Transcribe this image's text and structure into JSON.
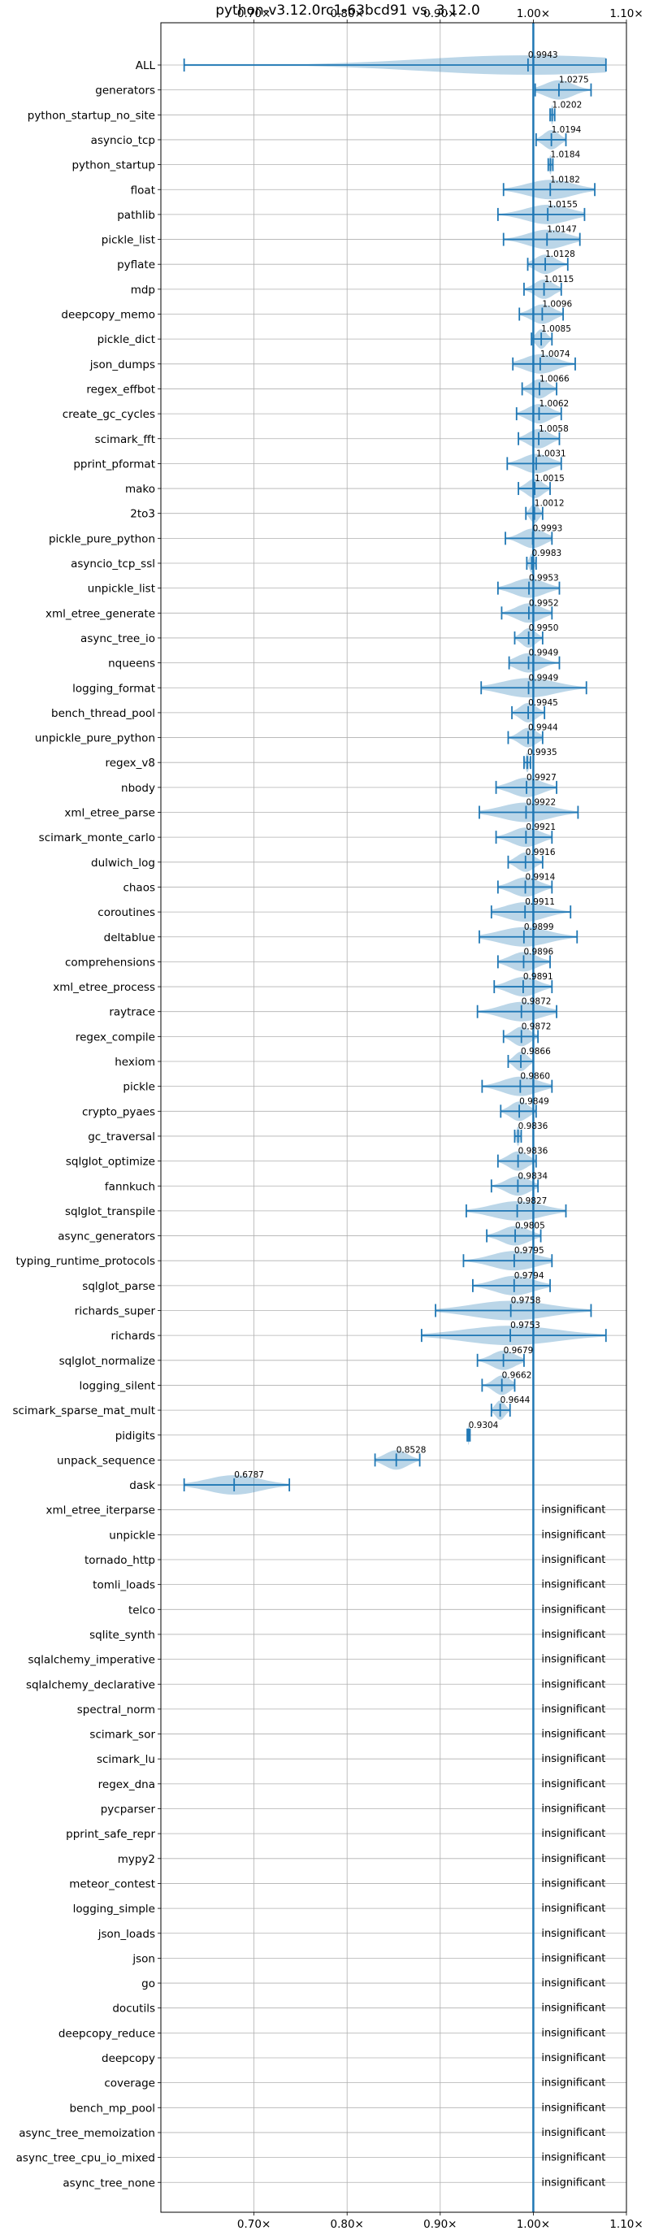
{
  "chart_data": {
    "type": "violin",
    "title": "python-v3.12.0rc1-63bcd91 vs. 3.12.0",
    "xlim": [
      0.6,
      1.1
    ],
    "xticks": [
      {
        "value": 0.7,
        "label": "0.70×"
      },
      {
        "value": 0.8,
        "label": "0.80×"
      },
      {
        "value": 0.9,
        "label": "0.90×"
      },
      {
        "value": 1.0,
        "label": "1.00×"
      },
      {
        "value": 1.1,
        "label": "1.10×"
      }
    ],
    "grid": true,
    "reference_line": 1.0,
    "insignificant_label": "insignificant",
    "benchmarks": [
      {
        "name": "ALL",
        "value": 0.9943,
        "label": "0.9943",
        "min": 0.625,
        "max": 1.078,
        "spread": 0.012
      },
      {
        "name": "generators",
        "value": 1.0275,
        "label": "1.0275",
        "min": 1.002,
        "max": 1.062,
        "spread": 0.02
      },
      {
        "name": "python_startup_no_site",
        "value": 1.0202,
        "label": "1.0202",
        "min": 1.018,
        "max": 1.023,
        "spread": 0.003
      },
      {
        "name": "asyncio_tcp",
        "value": 1.0194,
        "label": "1.0194",
        "min": 1.003,
        "max": 1.035,
        "spread": 0.012
      },
      {
        "name": "python_startup",
        "value": 1.0184,
        "label": "1.0184",
        "min": 1.016,
        "max": 1.021,
        "spread": 0.003
      },
      {
        "name": "float",
        "value": 1.0182,
        "label": "1.0182",
        "min": 0.968,
        "max": 1.066,
        "spread": 0.03
      },
      {
        "name": "pathlib",
        "value": 1.0155,
        "label": "1.0155",
        "min": 0.962,
        "max": 1.055,
        "spread": 0.03
      },
      {
        "name": "pickle_list",
        "value": 1.0147,
        "label": "1.0147",
        "min": 0.968,
        "max": 1.05,
        "spread": 0.026
      },
      {
        "name": "pyflate",
        "value": 1.0128,
        "label": "1.0128",
        "min": 0.994,
        "max": 1.037,
        "spread": 0.016
      },
      {
        "name": "mdp",
        "value": 1.0115,
        "label": "1.0115",
        "min": 0.99,
        "max": 1.03,
        "spread": 0.015
      },
      {
        "name": "deepcopy_memo",
        "value": 1.0096,
        "label": "1.0096",
        "min": 0.985,
        "max": 1.032,
        "spread": 0.015
      },
      {
        "name": "pickle_dict",
        "value": 1.0085,
        "label": "1.0085",
        "min": 0.998,
        "max": 1.02,
        "spread": 0.009
      },
      {
        "name": "json_dumps",
        "value": 1.0074,
        "label": "1.0074",
        "min": 0.978,
        "max": 1.045,
        "spread": 0.02
      },
      {
        "name": "regex_effbot",
        "value": 1.0066,
        "label": "1.0066",
        "min": 0.988,
        "max": 1.025,
        "spread": 0.013
      },
      {
        "name": "create_gc_cycles",
        "value": 1.0062,
        "label": "1.0062",
        "min": 0.982,
        "max": 1.03,
        "spread": 0.016
      },
      {
        "name": "scimark_fft",
        "value": 1.0058,
        "label": "1.0058",
        "min": 0.984,
        "max": 1.028,
        "spread": 0.015
      },
      {
        "name": "pprint_pformat",
        "value": 1.0031,
        "label": "1.0031",
        "min": 0.972,
        "max": 1.03,
        "spread": 0.017
      },
      {
        "name": "mako",
        "value": 1.0015,
        "label": "1.0015",
        "min": 0.984,
        "max": 1.018,
        "spread": 0.01
      },
      {
        "name": "2to3",
        "value": 1.0012,
        "label": "1.0012",
        "min": 0.992,
        "max": 1.01,
        "spread": 0.006
      },
      {
        "name": "pickle_pure_python",
        "value": 0.9993,
        "label": "0.9993",
        "min": 0.97,
        "max": 1.02,
        "spread": 0.016
      },
      {
        "name": "asyncio_tcp_ssl",
        "value": 0.9983,
        "label": "0.9983",
        "min": 0.993,
        "max": 1.003,
        "spread": 0.004
      },
      {
        "name": "unpickle_list",
        "value": 0.9953,
        "label": "0.9953",
        "min": 0.962,
        "max": 1.028,
        "spread": 0.02
      },
      {
        "name": "xml_etree_generate",
        "value": 0.9952,
        "label": "0.9952",
        "min": 0.966,
        "max": 1.02,
        "spread": 0.017
      },
      {
        "name": "async_tree_io",
        "value": 0.995,
        "label": "0.9950",
        "min": 0.98,
        "max": 1.01,
        "spread": 0.01
      },
      {
        "name": "nqueens",
        "value": 0.9949,
        "label": "0.9949",
        "min": 0.974,
        "max": 1.028,
        "spread": 0.015
      },
      {
        "name": "logging_format",
        "value": 0.9949,
        "label": "0.9949",
        "min": 0.944,
        "max": 1.057,
        "spread": 0.028
      },
      {
        "name": "bench_thread_pool",
        "value": 0.9945,
        "label": "0.9945",
        "min": 0.977,
        "max": 1.012,
        "spread": 0.011
      },
      {
        "name": "unpickle_pure_python",
        "value": 0.9944,
        "label": "0.9944",
        "min": 0.973,
        "max": 1.01,
        "spread": 0.013
      },
      {
        "name": "regex_v8",
        "value": 0.9935,
        "label": "0.9935",
        "min": 0.99,
        "max": 0.997,
        "spread": 0.003
      },
      {
        "name": "nbody",
        "value": 0.9927,
        "label": "0.9927",
        "min": 0.96,
        "max": 1.025,
        "spread": 0.018
      },
      {
        "name": "xml_etree_parse",
        "value": 0.9922,
        "label": "0.9922",
        "min": 0.942,
        "max": 1.048,
        "spread": 0.03
      },
      {
        "name": "scimark_monte_carlo",
        "value": 0.9921,
        "label": "0.9921",
        "min": 0.96,
        "max": 1.02,
        "spread": 0.018
      },
      {
        "name": "dulwich_log",
        "value": 0.9916,
        "label": "0.9916",
        "min": 0.973,
        "max": 1.01,
        "spread": 0.012
      },
      {
        "name": "chaos",
        "value": 0.9914,
        "label": "0.9914",
        "min": 0.962,
        "max": 1.02,
        "spread": 0.017
      },
      {
        "name": "coroutines",
        "value": 0.9911,
        "label": "0.9911",
        "min": 0.955,
        "max": 1.04,
        "spread": 0.018
      },
      {
        "name": "deltablue",
        "value": 0.9899,
        "label": "0.9899",
        "min": 0.942,
        "max": 1.047,
        "spread": 0.025
      },
      {
        "name": "comprehensions",
        "value": 0.9896,
        "label": "0.9896",
        "min": 0.962,
        "max": 1.018,
        "spread": 0.016
      },
      {
        "name": "xml_etree_process",
        "value": 0.9891,
        "label": "0.9891",
        "min": 0.958,
        "max": 1.02,
        "spread": 0.018
      },
      {
        "name": "raytrace",
        "value": 0.9872,
        "label": "0.9872",
        "min": 0.94,
        "max": 1.025,
        "spread": 0.022
      },
      {
        "name": "regex_compile",
        "value": 0.9872,
        "label": "0.9872",
        "min": 0.968,
        "max": 1.005,
        "spread": 0.012
      },
      {
        "name": "hexiom",
        "value": 0.9866,
        "label": "0.9866",
        "min": 0.973,
        "max": 1.0,
        "spread": 0.01
      },
      {
        "name": "pickle",
        "value": 0.986,
        "label": "0.9860",
        "min": 0.945,
        "max": 1.02,
        "spread": 0.02
      },
      {
        "name": "crypto_pyaes",
        "value": 0.9849,
        "label": "0.9849",
        "min": 0.965,
        "max": 1.003,
        "spread": 0.012
      },
      {
        "name": "gc_traversal",
        "value": 0.9836,
        "label": "0.9836",
        "min": 0.98,
        "max": 0.987,
        "spread": 0.003
      },
      {
        "name": "sqlglot_optimize",
        "value": 0.9836,
        "label": "0.9836",
        "min": 0.962,
        "max": 1.003,
        "spread": 0.013
      },
      {
        "name": "fannkuch",
        "value": 0.9834,
        "label": "0.9834",
        "min": 0.955,
        "max": 1.005,
        "spread": 0.015
      },
      {
        "name": "sqlglot_transpile",
        "value": 0.9827,
        "label": "0.9827",
        "min": 0.928,
        "max": 1.035,
        "spread": 0.03
      },
      {
        "name": "async_generators",
        "value": 0.9805,
        "label": "0.9805",
        "min": 0.95,
        "max": 1.008,
        "spread": 0.016
      },
      {
        "name": "typing_runtime_protocols",
        "value": 0.9795,
        "label": "0.9795",
        "min": 0.925,
        "max": 1.02,
        "spread": 0.028
      },
      {
        "name": "sqlglot_parse",
        "value": 0.9794,
        "label": "0.9794",
        "min": 0.935,
        "max": 1.018,
        "spread": 0.024
      },
      {
        "name": "richards_super",
        "value": 0.9758,
        "label": "0.9758",
        "min": 0.895,
        "max": 1.062,
        "spread": 0.035
      },
      {
        "name": "richards",
        "value": 0.9753,
        "label": "0.9753",
        "min": 0.88,
        "max": 1.078,
        "spread": 0.045
      },
      {
        "name": "sqlglot_normalize",
        "value": 0.9679,
        "label": "0.9679",
        "min": 0.94,
        "max": 0.99,
        "spread": 0.015
      },
      {
        "name": "logging_silent",
        "value": 0.9662,
        "label": "0.9662",
        "min": 0.945,
        "max": 0.98,
        "spread": 0.01
      },
      {
        "name": "scimark_sparse_mat_mult",
        "value": 0.9644,
        "label": "0.9644",
        "min": 0.955,
        "max": 0.975,
        "spread": 0.007
      },
      {
        "name": "pidigits",
        "value": 0.9304,
        "label": "0.9304",
        "min": 0.929,
        "max": 0.932,
        "spread": 0.0015
      },
      {
        "name": "unpack_sequence",
        "value": 0.8528,
        "label": "0.8528",
        "min": 0.83,
        "max": 0.878,
        "spread": 0.013
      },
      {
        "name": "dask",
        "value": 0.6787,
        "label": "0.6787",
        "min": 0.625,
        "max": 0.738,
        "spread": 0.035
      },
      {
        "name": "xml_etree_iterparse",
        "insignificant": true
      },
      {
        "name": "unpickle",
        "insignificant": true
      },
      {
        "name": "tornado_http",
        "insignificant": true
      },
      {
        "name": "tomli_loads",
        "insignificant": true
      },
      {
        "name": "telco",
        "insignificant": true
      },
      {
        "name": "sqlite_synth",
        "insignificant": true
      },
      {
        "name": "sqlalchemy_imperative",
        "insignificant": true
      },
      {
        "name": "sqlalchemy_declarative",
        "insignificant": true
      },
      {
        "name": "spectral_norm",
        "insignificant": true
      },
      {
        "name": "scimark_sor",
        "insignificant": true
      },
      {
        "name": "scimark_lu",
        "insignificant": true
      },
      {
        "name": "regex_dna",
        "insignificant": true
      },
      {
        "name": "pycparser",
        "insignificant": true
      },
      {
        "name": "pprint_safe_repr",
        "insignificant": true
      },
      {
        "name": "mypy2",
        "insignificant": true
      },
      {
        "name": "meteor_contest",
        "insignificant": true
      },
      {
        "name": "logging_simple",
        "insignificant": true
      },
      {
        "name": "json_loads",
        "insignificant": true
      },
      {
        "name": "json",
        "insignificant": true
      },
      {
        "name": "go",
        "insignificant": true
      },
      {
        "name": "docutils",
        "insignificant": true
      },
      {
        "name": "deepcopy_reduce",
        "insignificant": true
      },
      {
        "name": "deepcopy",
        "insignificant": true
      },
      {
        "name": "coverage",
        "insignificant": true
      },
      {
        "name": "bench_mp_pool",
        "insignificant": true
      },
      {
        "name": "async_tree_memoization",
        "insignificant": true
      },
      {
        "name": "async_tree_cpu_io_mixed",
        "insignificant": true
      },
      {
        "name": "async_tree_none",
        "insignificant": true
      }
    ]
  }
}
